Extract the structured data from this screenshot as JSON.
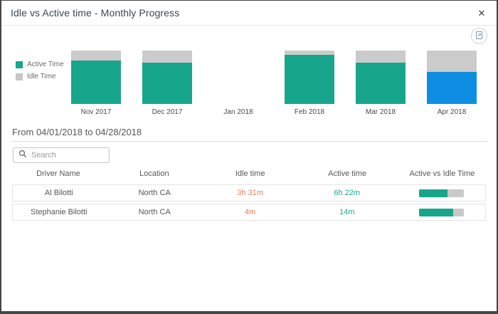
{
  "modal": {
    "title": "Idle vs Active time - Monthly Progress",
    "close_glyph": "✕"
  },
  "colors": {
    "active": "#17a68b",
    "idle": "#cbcbcb",
    "selected_month_active": "#0d8ee2",
    "idle_time_text": "#e0825c",
    "active_time_text": "#1ba88d"
  },
  "chart_data": {
    "type": "bar",
    "subtype": "stacked-100-percent",
    "title": "Idle vs Active time - Monthly Progress",
    "categories": [
      "Nov 2017",
      "Dec 2017",
      "Jan 2018",
      "Feb 2018",
      "Mar 2018",
      "Apr 2018"
    ],
    "series": [
      {
        "name": "Active Time",
        "values": [
          82,
          78,
          null,
          92,
          78,
          60
        ]
      },
      {
        "name": "Idle Time",
        "values": [
          18,
          22,
          null,
          8,
          22,
          40
        ]
      }
    ],
    "unit": "percent of total time",
    "highlight_category": "Apr 2018",
    "legend_position": "left",
    "grid": false,
    "ylim": [
      0,
      100
    ]
  },
  "period": {
    "label": "From 04/01/2018 to 04/28/2018"
  },
  "search": {
    "placeholder": "Search"
  },
  "table": {
    "columns": [
      "Driver Name",
      "Location",
      "Idle time",
      "Active time",
      "Active vs Idle Time"
    ],
    "rows": [
      {
        "driver_name": "Al Bilotti",
        "location": "North CA",
        "idle_time": "3h 31m",
        "active_time": "6h 22m",
        "active_pct": 64
      },
      {
        "driver_name": "Stephanie Bilotti",
        "location": "North CA",
        "idle_time": "4m",
        "active_time": "14m",
        "active_pct": 76
      }
    ]
  }
}
